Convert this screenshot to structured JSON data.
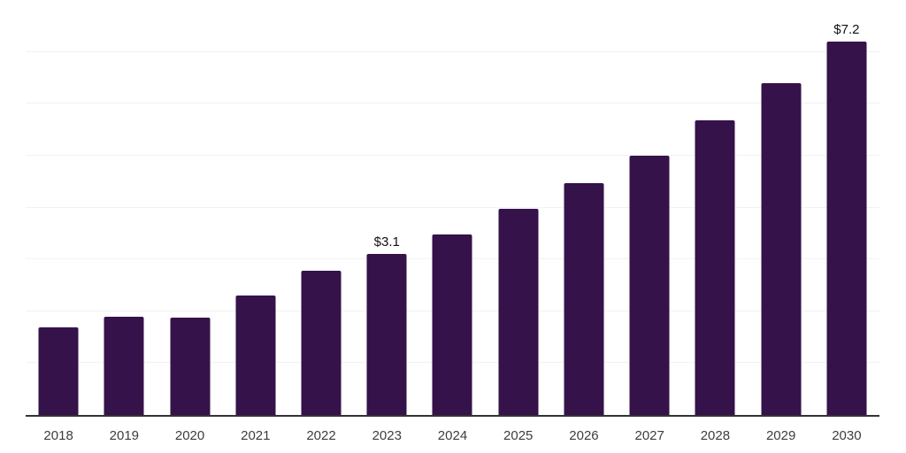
{
  "chart_data": {
    "type": "bar",
    "title": "",
    "xlabel": "",
    "ylabel": "",
    "categories": [
      "2018",
      "2019",
      "2020",
      "2021",
      "2022",
      "2023",
      "2024",
      "2025",
      "2026",
      "2027",
      "2028",
      "2029",
      "2030"
    ],
    "values": [
      1.69,
      1.9,
      1.88,
      2.3,
      2.79,
      3.1,
      3.48,
      3.97,
      4.48,
      5.0,
      5.68,
      6.4,
      7.2
    ],
    "point_labels": [
      "",
      "",
      "",
      "",
      "",
      "$3.1",
      "",
      "",
      "",
      "",
      "",
      "",
      "$7.2"
    ],
    "ylim": [
      0,
      8
    ],
    "gridline_values": [
      1,
      2,
      3,
      4,
      5,
      6,
      7,
      8
    ],
    "grid": "horizontal",
    "legend_position": "none",
    "colors": {
      "bar": "#35124A",
      "gridline": "#f2f2f2",
      "axis_line": "#333333",
      "tick_label": "#3d3d3d",
      "value_label": "#111111",
      "background": "#ffffff"
    }
  }
}
